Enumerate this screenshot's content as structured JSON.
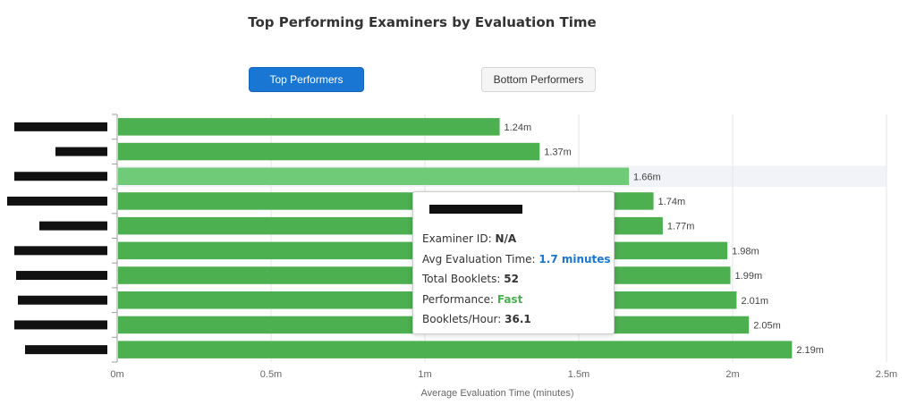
{
  "title": "Top Performing Examiners by Evaluation Time",
  "buttons": {
    "top_label": "Top Performers",
    "bottom_label": "Bottom Performers"
  },
  "colors": {
    "bar": "#4caf50",
    "bar_highlight": "#6fcb78",
    "primary": "#1976d2",
    "fast": "#4caf50"
  },
  "chart_data": {
    "type": "bar",
    "orientation": "horizontal",
    "categories": [
      "",
      "",
      "",
      "",
      "",
      "",
      "",
      "",
      "",
      ""
    ],
    "category_labels_redacted": true,
    "values": [
      1.24,
      1.37,
      1.66,
      1.74,
      1.77,
      1.98,
      1.99,
      2.01,
      2.05,
      2.19
    ],
    "value_labels": [
      "1.24m",
      "1.37m",
      "1.66m",
      "1.74m",
      "1.77m",
      "1.98m",
      "1.99m",
      "2.01m",
      "2.05m",
      "2.19m"
    ],
    "xlim": [
      0,
      2.5
    ],
    "xticks": [
      0,
      0.5,
      1,
      1.5,
      2,
      2.5
    ],
    "xtick_labels": [
      "0m",
      "0.5m",
      "1m",
      "1.5m",
      "2m",
      "2.5m"
    ],
    "xlabel": "Average Evaluation Time (minutes)",
    "ylabel": "",
    "grid": "vertical",
    "highlighted_index": 2
  },
  "tooltip": {
    "name_redacted": true,
    "examiner_id_label": "Examiner ID:",
    "examiner_id_value": "N/A",
    "avg_time_label": "Avg Evaluation Time:",
    "avg_time_value": "1.7 minutes",
    "total_booklets_label": "Total Booklets:",
    "total_booklets_value": "52",
    "performance_label": "Performance:",
    "performance_value": "Fast",
    "booklets_hour_label": "Booklets/Hour:",
    "booklets_hour_value": "36.1"
  }
}
